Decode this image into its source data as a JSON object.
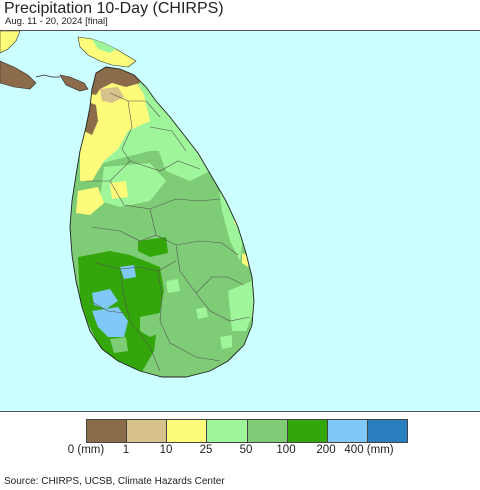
{
  "header": {
    "title": "Precipitation 10-Day (CHIRPS)",
    "subtitle": "Aug. 11 - 20, 2024 [final]"
  },
  "legend": {
    "labels": [
      "0 (mm)",
      "1",
      "10",
      "25",
      "50",
      "100",
      "200",
      "400 (mm)"
    ],
    "colors": [
      "#8b6b4a",
      "#d6c28a",
      "#fffb7a",
      "#9ef59a",
      "#7fcc77",
      "#33a60a",
      "#7fc8f8",
      "#2a7fc0"
    ]
  },
  "footer": {
    "source": "Source: CHIRPS, UCSB, Climate Hazards Center"
  },
  "colors": {
    "ocean": "#ccffff",
    "land_base": "#7fcc77",
    "district_lines": "#555555"
  }
}
